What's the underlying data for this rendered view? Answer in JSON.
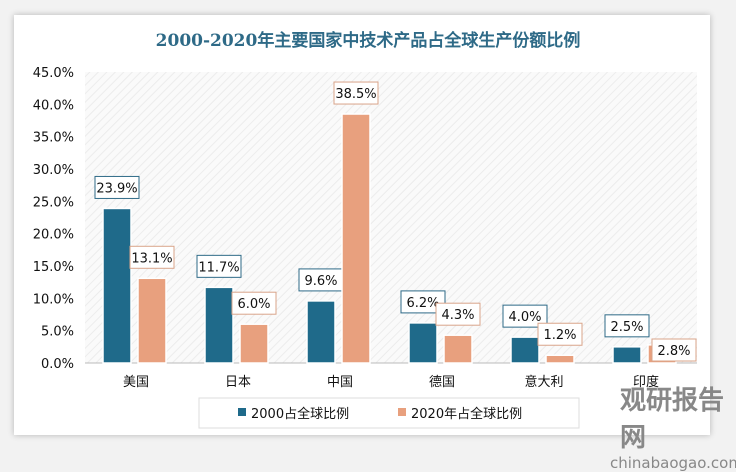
{
  "chart_data": {
    "type": "bar",
    "title": "2000-2020年主要国家中技术产品占全球生产份额比例",
    "categories": [
      "美国",
      "日本",
      "中国",
      "德国",
      "意大利",
      "印度"
    ],
    "series": [
      {
        "name": "2000占全球比例",
        "values": [
          23.9,
          11.7,
          9.6,
          6.2,
          4.0,
          2.5
        ],
        "color": "#1f6a8a"
      },
      {
        "name": "2020年占全球比例",
        "values": [
          13.1,
          6.0,
          38.5,
          4.3,
          1.2,
          2.8
        ],
        "color": "#e8a07e"
      }
    ],
    "ylim": [
      0,
      45
    ],
    "yticks": [
      "0.0%",
      "5.0%",
      "10.0%",
      "15.0%",
      "20.0%",
      "25.0%",
      "30.0%",
      "35.0%",
      "40.0%",
      "45.0%"
    ],
    "legend": "bottom",
    "grid": false
  },
  "watermark": {
    "name": "观研报告网",
    "url": "chinabaogao.com"
  }
}
